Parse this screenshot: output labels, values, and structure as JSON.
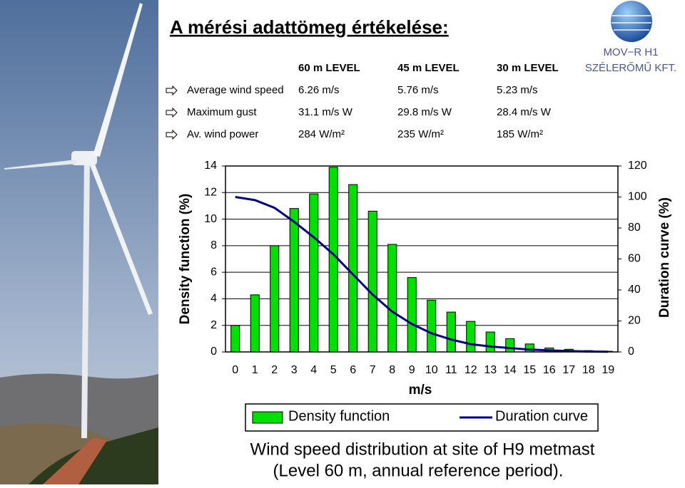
{
  "header": {
    "title": "A mérési adattömeg értékelése:"
  },
  "logo": {
    "line1": "MOV−R H1",
    "line2": "SZÉLERŐMŰ KFT."
  },
  "table": {
    "columns": [
      "60 m LEVEL",
      "45 m LEVEL",
      "30 m LEVEL"
    ],
    "rows": [
      [
        "Average wind speed",
        "6.26 m/s",
        "5.76 m/s",
        "5.23 m/s"
      ],
      [
        "Maximum gust",
        "31.1 m/s W",
        "29.8 m/s W",
        "28.4 m/s W"
      ],
      [
        "Av. wind power",
        "284 W/m²",
        "235 W/m²",
        "185 W/m²"
      ]
    ]
  },
  "chart_data": {
    "type": "bar",
    "title": "Wind speed distribution at site of H9 metmast",
    "subtitle": "(Level 60 m, annual reference period).",
    "x_label": "m/s",
    "y_label": "Density function (%)",
    "y2_label": "Duration curve (%)",
    "x": [
      0,
      1,
      2,
      3,
      4,
      5,
      6,
      7,
      8,
      9,
      10,
      11,
      12,
      13,
      14,
      15,
      16,
      17,
      18,
      19
    ],
    "xlim": [
      -0.5,
      19.5
    ],
    "ylim": [
      0,
      14
    ],
    "yticks": [
      0,
      2,
      4,
      6,
      8,
      10,
      12,
      14
    ],
    "y2lim": [
      0,
      120
    ],
    "y2ticks": [
      0,
      20,
      40,
      60,
      80,
      100,
      120
    ],
    "grid": true,
    "legend": "bottom",
    "series": [
      {
        "name": "Density function",
        "type": "bar",
        "color": "#00e000",
        "values": [
          2.0,
          4.3,
          8.0,
          10.8,
          11.9,
          13.9,
          12.6,
          10.6,
          8.1,
          5.6,
          3.9,
          3.0,
          2.3,
          1.5,
          1.0,
          0.6,
          0.3,
          0.2,
          0.1,
          0.05
        ]
      },
      {
        "name": "Duration curve",
        "type": "line",
        "axis": "y2",
        "color": "#000080",
        "values": [
          100,
          98,
          93,
          84,
          74,
          63,
          50,
          37,
          26,
          18,
          12,
          8,
          5,
          3.5,
          2.5,
          1.5,
          1,
          0.6,
          0.3,
          0.1
        ]
      }
    ]
  }
}
